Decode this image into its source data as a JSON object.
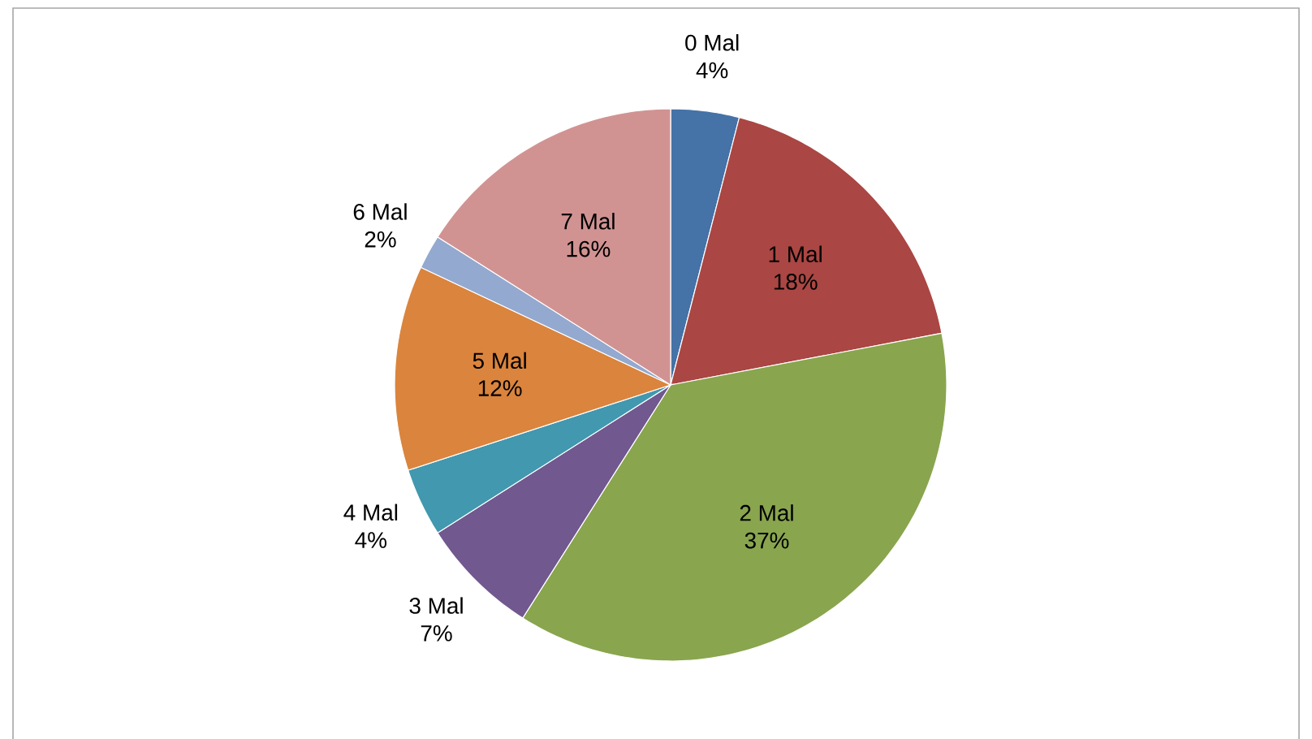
{
  "chart_data": {
    "type": "pie",
    "categories": [
      "0 Mal",
      "1 Mal",
      "2 Mal",
      "3 Mal",
      "4 Mal",
      "5 Mal",
      "6 Mal",
      "7 Mal"
    ],
    "values": [
      4,
      18,
      37,
      7,
      4,
      12,
      2,
      16
    ],
    "value_labels": [
      "4%",
      "18%",
      "37%",
      "7%",
      "4%",
      "12%",
      "2%",
      "16%"
    ],
    "colors": [
      "#4572a7",
      "#aa4643",
      "#89a54e",
      "#71588f",
      "#4198af",
      "#db843d",
      "#93a9cf",
      "#d19392"
    ]
  }
}
